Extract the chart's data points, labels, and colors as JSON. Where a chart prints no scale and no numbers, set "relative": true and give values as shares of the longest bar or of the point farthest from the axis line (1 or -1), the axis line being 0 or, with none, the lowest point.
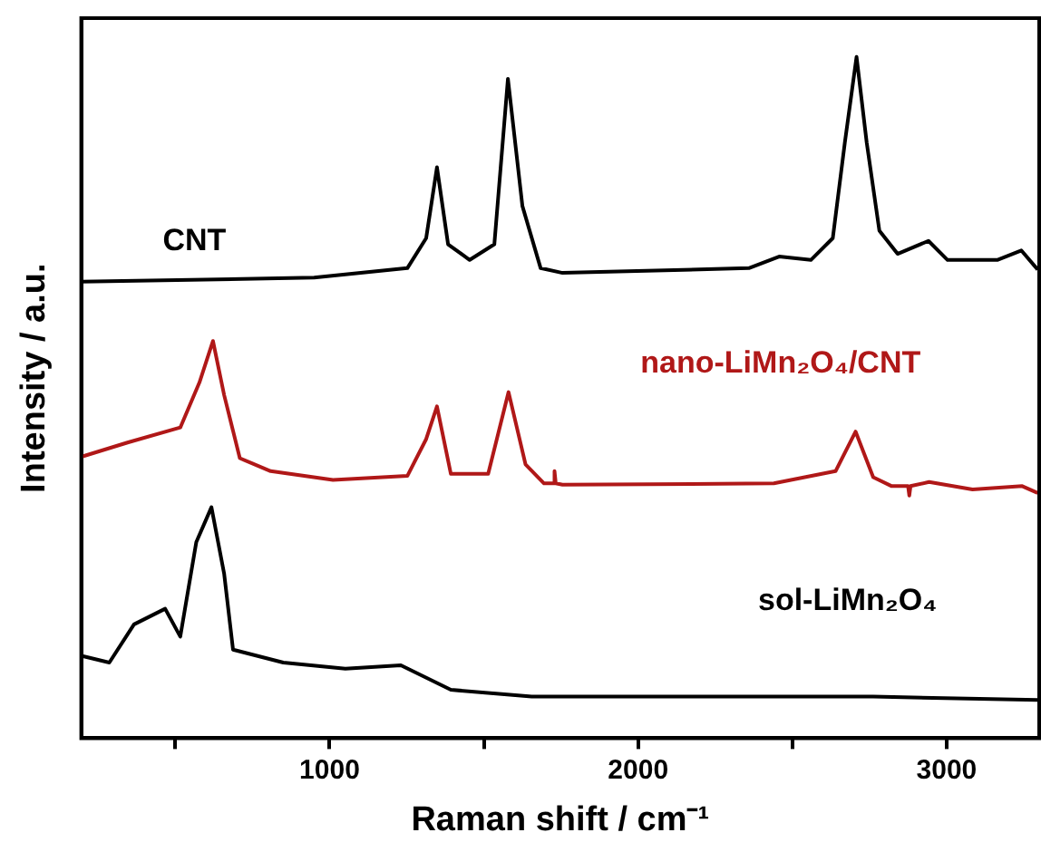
{
  "chart_data": {
    "type": "line",
    "relative": true,
    "xlabel": "Raman shift / cm⁻¹",
    "ylabel": "Intensity / a.u.",
    "xlim": [
      195,
      3300
    ],
    "xticks": [
      {
        "value": 500,
        "label": null
      },
      1000,
      {
        "value": 1500,
        "label": null
      },
      2000,
      {
        "value": 2500,
        "label": null
      },
      3000
    ],
    "grid": false,
    "legend": false,
    "marker": "none",
    "line_style": "solid",
    "series": [
      {
        "name": "CNT",
        "color": "#000000",
        "x": [
          195,
          950,
          1252,
          1313,
          1348,
          1384,
          1454,
          1534,
          1578,
          1625,
          1684,
          1755,
          2359,
          2457,
          2560,
          2631,
          2670,
          2708,
          2741,
          2782,
          2841,
          2941,
          3003,
          3164,
          3242,
          3295
        ],
        "values": [
          0.67,
          0.676,
          0.69,
          0.734,
          0.838,
          0.725,
          0.702,
          0.725,
          0.968,
          0.781,
          0.69,
          0.683,
          0.69,
          0.707,
          0.702,
          0.734,
          0.874,
          1,
          0.874,
          0.745,
          0.711,
          0.73,
          0.702,
          0.702,
          0.716,
          0.688
        ]
      },
      {
        "name": "nano-LiMn₂O₄/CNT",
        "color": "#b01818",
        "x": [
          195,
          345,
          516,
          578,
          622,
          658,
          709,
          809,
          1011,
          1252,
          1313,
          1348,
          1393,
          1514,
          1580,
          1635,
          1695,
          1725,
          1729,
          1733,
          1755,
          2440,
          2640,
          2705,
          2762,
          2822,
          2875,
          2879,
          2883,
          2943,
          3084,
          3245,
          3295
        ],
        "values": [
          0.413,
          0.434,
          0.456,
          0.522,
          0.583,
          0.504,
          0.411,
          0.392,
          0.379,
          0.385,
          0.439,
          0.487,
          0.388,
          0.388,
          0.508,
          0.402,
          0.374,
          0.374,
          0.392,
          0.374,
          0.372,
          0.374,
          0.392,
          0.45,
          0.383,
          0.37,
          0.37,
          0.356,
          0.37,
          0.376,
          0.365,
          0.37,
          0.36
        ]
      },
      {
        "name": "sol-LiMn₂O₄",
        "color": "#000000",
        "x": [
          195,
          286,
          366,
          467,
          516,
          568,
          617,
          658,
          687,
          850,
          1051,
          1231,
          1393,
          1655,
          2158,
          2762,
          3295
        ],
        "values": [
          0.121,
          0.111,
          0.167,
          0.19,
          0.149,
          0.288,
          0.339,
          0.242,
          0.13,
          0.111,
          0.102,
          0.107,
          0.071,
          0.061,
          0.061,
          0.061,
          0.056
        ]
      }
    ]
  }
}
